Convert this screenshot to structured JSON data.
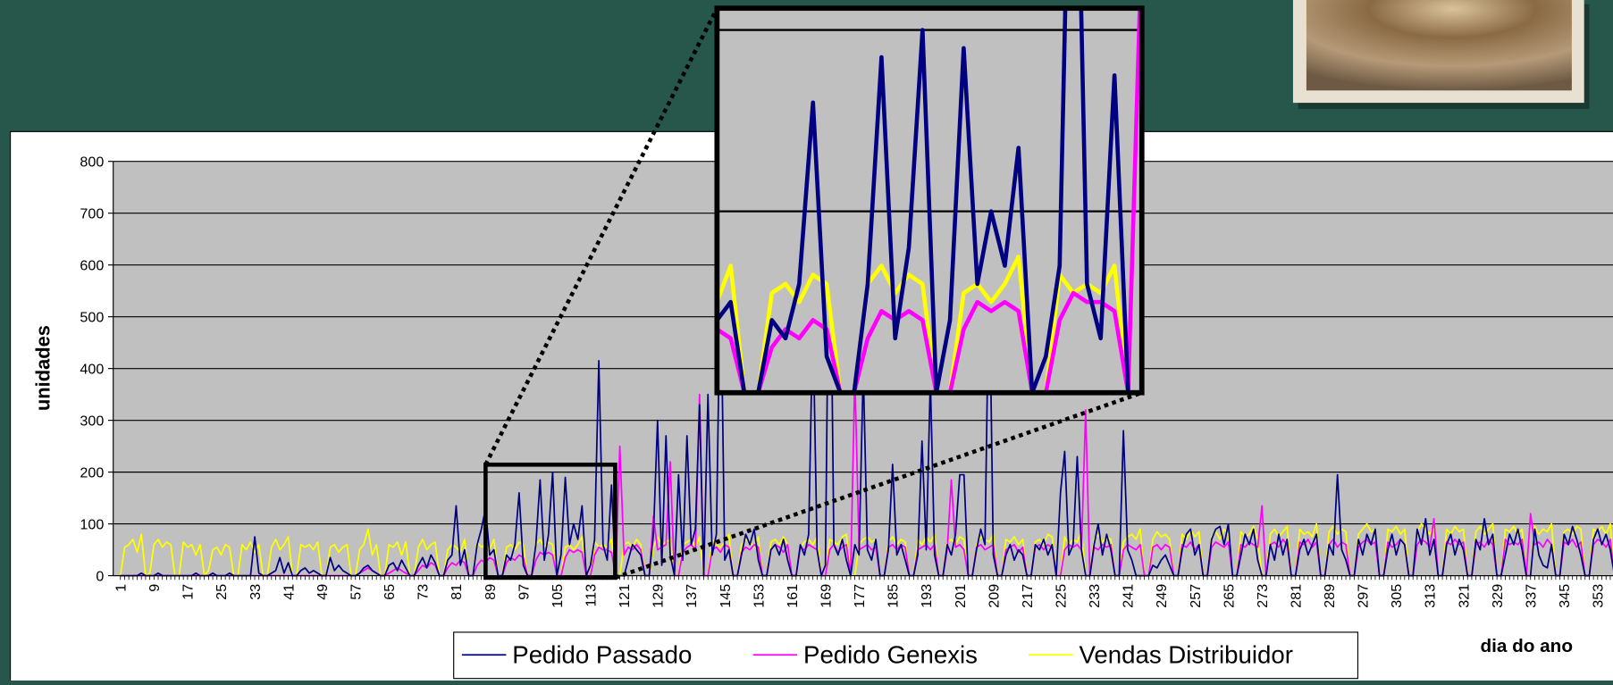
{
  "chart_data": {
    "type": "line",
    "xlabel": "dia do ano",
    "ylabel": "unidades",
    "x": [
      1,
      2,
      3,
      4,
      5,
      6,
      7,
      8,
      9,
      10,
      11,
      12,
      13,
      14,
      15,
      16,
      17,
      18,
      19,
      20,
      21,
      22,
      23,
      24,
      25,
      26,
      27,
      28,
      29,
      30,
      31,
      32,
      33,
      34,
      35,
      36,
      37,
      38,
      39,
      40,
      41,
      42,
      43,
      44,
      45,
      46,
      47,
      48,
      49,
      50,
      51,
      52,
      53,
      54,
      55,
      56,
      57,
      58,
      59,
      60,
      61,
      62,
      63,
      64,
      65,
      66,
      67,
      68,
      69,
      70,
      71,
      72,
      73,
      74,
      75,
      76,
      77,
      78,
      79,
      80,
      81,
      82,
      83,
      84,
      85,
      86,
      87,
      88,
      89,
      90,
      91,
      92,
      93,
      94,
      95,
      96,
      97,
      98,
      99,
      100,
      101,
      102,
      103,
      104,
      105,
      106,
      107,
      108,
      109,
      110,
      111,
      112,
      113,
      114,
      115,
      116,
      117,
      118,
      119,
      120,
      121,
      122,
      123,
      124,
      125,
      126,
      127,
      128,
      129,
      130,
      131,
      132,
      133,
      134,
      135,
      136,
      137,
      138,
      139,
      140,
      141,
      142,
      143,
      144,
      145,
      146,
      147,
      148,
      149,
      150,
      151,
      152,
      153,
      154,
      155,
      156,
      157,
      158,
      159,
      160,
      161,
      162,
      163,
      164,
      165,
      166,
      167,
      168,
      169,
      170,
      171,
      172,
      173,
      174,
      175,
      176,
      177,
      178,
      179,
      180,
      181,
      182,
      183,
      184,
      185,
      186,
      187,
      188,
      189,
      190,
      191,
      192,
      193,
      194,
      195,
      196,
      197,
      198,
      199,
      200,
      201,
      202,
      203,
      204,
      205,
      206,
      207,
      208,
      209,
      210,
      211,
      212,
      213,
      214,
      215,
      216,
      217,
      218,
      219,
      220,
      221,
      222,
      223,
      224,
      225,
      226,
      227,
      228,
      229,
      230,
      231,
      232,
      233,
      234,
      235,
      236,
      237,
      238,
      239,
      240,
      241,
      242,
      243,
      244,
      245,
      246,
      247,
      248,
      249,
      250,
      251,
      252,
      253,
      254,
      255,
      256,
      257,
      258,
      259,
      260,
      261,
      262,
      263,
      264,
      265,
      266,
      267,
      268,
      269,
      270,
      271,
      272,
      273,
      274,
      275,
      276,
      277,
      278,
      279,
      280,
      281,
      282,
      283,
      284,
      285,
      286,
      287,
      288,
      289,
      290,
      291,
      292,
      293,
      294,
      295,
      296,
      297,
      298,
      299,
      300,
      301,
      302,
      303,
      304,
      305,
      306,
      307,
      308,
      309,
      310,
      311,
      312,
      313,
      314,
      315,
      316,
      317,
      318,
      319,
      320,
      321,
      322,
      323,
      324,
      325,
      326,
      327,
      328,
      329,
      330,
      331,
      332,
      333,
      334,
      335,
      336,
      337,
      338,
      339,
      340,
      341,
      342,
      343,
      344,
      345,
      346,
      347,
      348,
      349,
      350,
      351,
      352,
      353,
      354,
      355,
      356,
      357,
      358
    ],
    "xticks": [
      1,
      9,
      17,
      25,
      33,
      41,
      49,
      57,
      65,
      73,
      81,
      89,
      97,
      105,
      113,
      121,
      129,
      137,
      145,
      153,
      161,
      169,
      177,
      185,
      193,
      201,
      209,
      217,
      225,
      233,
      241,
      249,
      257,
      265,
      273,
      281,
      289,
      297,
      305,
      313,
      321,
      329,
      337,
      345,
      353
    ],
    "ylim": [
      0,
      800
    ],
    "yticks": [
      0,
      100,
      200,
      300,
      400,
      500,
      600,
      700,
      800
    ],
    "grid": true,
    "zoom_xlim": [
      89,
      120
    ],
    "zoom_ylim": [
      0,
      212
    ],
    "series": [
      {
        "name": "Pedido Passado",
        "color": "#000080",
        "values": [
          0,
          0,
          0,
          0,
          0,
          5,
          0,
          0,
          0,
          5,
          0,
          0,
          0,
          0,
          0,
          0,
          0,
          0,
          5,
          0,
          0,
          0,
          5,
          0,
          0,
          0,
          5,
          0,
          0,
          0,
          0,
          0,
          75,
          5,
          0,
          0,
          5,
          10,
          35,
          5,
          25,
          0,
          0,
          10,
          15,
          5,
          10,
          5,
          0,
          0,
          35,
          10,
          20,
          10,
          5,
          0,
          0,
          5,
          15,
          20,
          10,
          5,
          0,
          0,
          20,
          25,
          10,
          30,
          15,
          0,
          0,
          20,
          35,
          15,
          40,
          25,
          0,
          0,
          30,
          40,
          135,
          20,
          50,
          0,
          0,
          60,
          90,
          130,
          40,
          50,
          0,
          0,
          40,
          30,
          60,
          160,
          20,
          0,
          0,
          60,
          185,
          30,
          80,
          200,
          0,
          40,
          190,
          60,
          100,
          70,
          135,
          0,
          20,
          70,
          415,
          60,
          30,
          175,
          0,
          0,
          0,
          30,
          60,
          50,
          40,
          0,
          0,
          80,
          300,
          20,
          270,
          40,
          0,
          195,
          30,
          270,
          60,
          90,
          330,
          0,
          350,
          40,
          80,
          600,
          30,
          50,
          0,
          0,
          40,
          80,
          60,
          90,
          30,
          0,
          0,
          50,
          60,
          40,
          70,
          30,
          0,
          0,
          60,
          40,
          80,
          500,
          50,
          0,
          20,
          800,
          60,
          40,
          70,
          30,
          0,
          60,
          40,
          400,
          50,
          30,
          70,
          0,
          0,
          50,
          215,
          40,
          60,
          30,
          0,
          0,
          40,
          260,
          50,
          380,
          40,
          0,
          0,
          60,
          40,
          80,
          195,
          195,
          0,
          0,
          50,
          90,
          60,
          600,
          40,
          0,
          0,
          40,
          60,
          30,
          50,
          40,
          0,
          0,
          60,
          50,
          70,
          40,
          60,
          0,
          160,
          240,
          40,
          60,
          230,
          50,
          0,
          0,
          60,
          100,
          40,
          80,
          50,
          0,
          0,
          280,
          50,
          30,
          0,
          0,
          0,
          0,
          20,
          15,
          30,
          40,
          20,
          0,
          0,
          50,
          80,
          90,
          40,
          60,
          0,
          0,
          70,
          90,
          95,
          60,
          100,
          0,
          0,
          40,
          80,
          60,
          90,
          30,
          0,
          0,
          60,
          30,
          80,
          40,
          70,
          0,
          0,
          50,
          70,
          40,
          60,
          80,
          0,
          0,
          60,
          40,
          195,
          50,
          30,
          0,
          0,
          70,
          40,
          80,
          60,
          90,
          0,
          0,
          50,
          80,
          40,
          70,
          60,
          0,
          0,
          90,
          60,
          110,
          40,
          70,
          0,
          0,
          60,
          80,
          40,
          70,
          50,
          0,
          0,
          70,
          50,
          110,
          60,
          80,
          0,
          0,
          40,
          80,
          60,
          90,
          50,
          0,
          0,
          90,
          40,
          20,
          15,
          60,
          0,
          0,
          80,
          60,
          95,
          70,
          40,
          0,
          0,
          70,
          90,
          60,
          80,
          50,
          0,
          0
        ]
      },
      {
        "name": "Pedido Genexis",
        "color": "#ff00ff",
        "values": [
          0,
          0,
          0,
          0,
          0,
          0,
          0,
          0,
          0,
          0,
          0,
          0,
          0,
          0,
          0,
          0,
          0,
          0,
          0,
          0,
          0,
          0,
          0,
          0,
          0,
          0,
          0,
          0,
          0,
          0,
          0,
          0,
          0,
          0,
          0,
          0,
          0,
          0,
          0,
          0,
          0,
          0,
          0,
          0,
          0,
          0,
          0,
          0,
          0,
          0,
          0,
          0,
          0,
          0,
          0,
          0,
          0,
          5,
          10,
          15,
          10,
          5,
          0,
          0,
          5,
          10,
          15,
          10,
          5,
          0,
          0,
          10,
          20,
          15,
          25,
          20,
          0,
          0,
          15,
          25,
          20,
          30,
          25,
          0,
          0,
          20,
          30,
          25,
          35,
          30,
          0,
          0,
          25,
          35,
          30,
          40,
          35,
          0,
          0,
          30,
          45,
          40,
          45,
          40,
          0,
          0,
          35,
          50,
          45,
          50,
          45,
          0,
          0,
          40,
          55,
          50,
          50,
          45,
          0,
          250,
          40,
          55,
          50,
          60,
          50,
          0,
          0,
          115,
          50,
          55,
          60,
          220,
          0,
          0,
          45,
          55,
          60,
          50,
          350,
          0,
          0,
          50,
          55,
          45,
          60,
          55,
          0,
          0,
          45,
          55,
          50,
          60,
          55,
          0,
          0,
          50,
          60,
          55,
          45,
          60,
          0,
          0,
          55,
          50,
          60,
          55,
          50,
          0,
          0,
          50,
          60,
          45,
          55,
          60,
          0,
          390,
          50,
          55,
          60,
          50,
          55,
          0,
          0,
          55,
          60,
          50,
          60,
          55,
          0,
          0,
          50,
          55,
          60,
          50,
          60,
          0,
          0,
          50,
          185,
          55,
          60,
          50,
          0,
          0,
          55,
          60,
          50,
          55,
          60,
          0,
          0,
          50,
          55,
          60,
          45,
          55,
          0,
          0,
          55,
          60,
          50,
          60,
          55,
          0,
          0,
          50,
          60,
          55,
          60,
          50,
          320,
          0,
          55,
          50,
          60,
          55,
          60,
          0,
          0,
          50,
          60,
          55,
          50,
          60,
          0,
          0,
          55,
          60,
          50,
          60,
          55,
          0,
          0,
          60,
          55,
          65,
          50,
          60,
          0,
          0,
          55,
          65,
          60,
          55,
          65,
          0,
          0,
          60,
          55,
          65,
          60,
          55,
          135,
          0,
          60,
          65,
          55,
          70,
          60,
          0,
          0,
          65,
          60,
          70,
          55,
          65,
          0,
          0,
          60,
          70,
          55,
          65,
          60,
          0,
          0,
          55,
          65,
          70,
          60,
          65,
          0,
          0,
          65,
          55,
          60,
          70,
          60,
          0,
          0,
          60,
          70,
          65,
          55,
          110,
          0,
          0,
          65,
          60,
          70,
          60,
          65,
          0,
          0,
          60,
          65,
          55,
          70,
          60,
          0,
          0,
          70,
          60,
          65,
          60,
          70,
          0,
          120,
          60,
          65,
          55,
          70,
          60,
          0,
          0,
          65,
          60,
          70,
          55,
          65,
          0,
          0,
          60,
          70,
          65,
          55,
          70,
          0,
          0
        ]
      },
      {
        "name": "Vendas Distribuidor",
        "color": "#ffff00",
        "values": [
          0,
          55,
          60,
          70,
          45,
          80,
          0,
          5,
          60,
          70,
          55,
          65,
          60,
          0,
          0,
          65,
          55,
          60,
          40,
          60,
          0,
          10,
          50,
          55,
          40,
          60,
          55,
          0,
          0,
          60,
          50,
          65,
          45,
          60,
          0,
          0,
          55,
          70,
          50,
          60,
          75,
          0,
          0,
          60,
          55,
          60,
          50,
          65,
          0,
          0,
          55,
          60,
          45,
          55,
          60,
          0,
          0,
          50,
          60,
          90,
          40,
          60,
          0,
          0,
          60,
          55,
          65,
          40,
          65,
          0,
          0,
          55,
          70,
          50,
          60,
          65,
          0,
          0,
          50,
          60,
          55,
          45,
          70,
          0,
          0,
          65,
          55,
          60,
          50,
          70,
          0,
          0,
          55,
          60,
          50,
          65,
          60,
          0,
          0,
          60,
          70,
          55,
          65,
          60,
          0,
          0,
          55,
          60,
          50,
          60,
          75,
          0,
          0,
          65,
          55,
          60,
          55,
          70,
          0,
          0,
          60,
          65,
          55,
          70,
          60,
          0,
          0,
          55,
          75,
          60,
          65,
          70,
          0,
          0,
          60,
          65,
          70,
          55,
          75,
          0,
          0,
          70,
          60,
          55,
          65,
          80,
          0,
          0,
          60,
          70,
          65,
          55,
          75,
          0,
          0,
          65,
          70,
          60,
          75,
          60,
          0,
          0,
          55,
          65,
          70,
          60,
          75,
          0,
          0,
          70,
          65,
          60,
          75,
          80,
          0,
          0,
          60,
          70,
          75,
          65,
          70,
          0,
          0,
          65,
          75,
          60,
          70,
          65,
          0,
          0,
          70,
          60,
          75,
          65,
          80,
          0,
          0,
          65,
          70,
          60,
          75,
          70,
          0,
          0,
          60,
          75,
          70,
          65,
          80,
          0,
          0,
          70,
          65,
          75,
          60,
          70,
          0,
          0,
          65,
          70,
          60,
          80,
          75,
          0,
          0,
          75,
          60,
          70,
          65,
          85,
          0,
          0,
          70,
          80,
          65,
          75,
          70,
          0,
          0,
          65,
          75,
          80,
          70,
          90,
          0,
          0,
          70,
          85,
          75,
          80,
          70,
          0,
          0,
          80,
          70,
          90,
          75,
          85,
          0,
          0,
          75,
          85,
          70,
          90,
          80,
          0,
          0,
          85,
          75,
          80,
          95,
          70,
          0,
          0,
          80,
          90,
          75,
          85,
          95,
          0,
          0,
          90,
          80,
          85,
          75,
          100,
          0,
          0,
          85,
          95,
          80,
          90,
          85,
          0,
          0,
          80,
          90,
          100,
          85,
          90,
          0,
          0,
          90,
          85,
          95,
          80,
          90,
          0,
          0,
          85,
          100,
          90,
          80,
          95,
          0,
          0,
          90,
          80,
          95,
          85,
          90,
          0,
          0,
          85,
          95,
          80,
          90,
          100,
          0,
          0,
          90,
          85,
          95,
          80,
          90,
          0,
          0,
          95,
          80,
          90,
          85,
          100,
          0,
          0,
          85,
          90,
          80,
          95,
          90,
          0,
          0,
          90,
          85,
          95,
          80,
          100,
          0,
          0
        ]
      }
    ]
  }
}
